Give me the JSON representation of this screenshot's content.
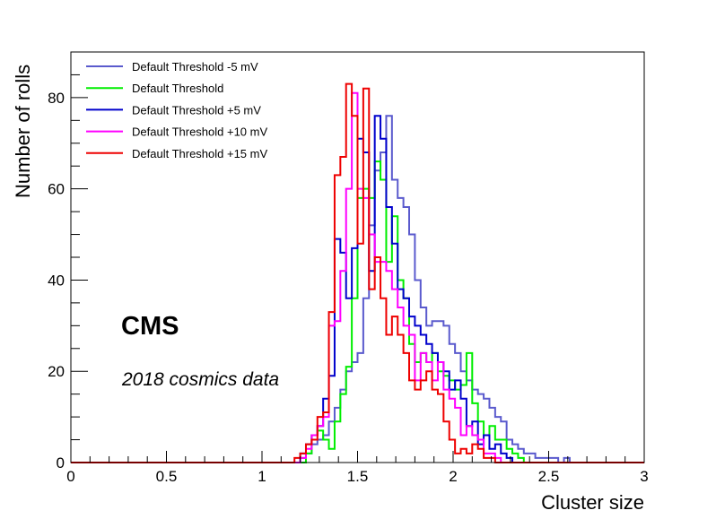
{
  "chart_data": {
    "type": "histogram",
    "xlabel": "Cluster size",
    "ylabel": "Number of rolls",
    "xlim": [
      0,
      3
    ],
    "ylim": [
      0,
      90
    ],
    "bin_width": 0.03,
    "x_ticks": [
      "0",
      "0.5",
      "1",
      "1.5",
      "2",
      "2.5",
      "3"
    ],
    "x_tick_values": [
      0,
      0.5,
      1,
      1.5,
      2,
      2.5,
      3
    ],
    "y_ticks": [
      "0",
      "20",
      "40",
      "60",
      "80"
    ],
    "y_tick_values": [
      0,
      20,
      40,
      60,
      80
    ],
    "annotations": {
      "experiment": "CMS",
      "dataset": "2018 cosmics data"
    },
    "legend_position": "top-left",
    "series": [
      {
        "name": "Default Threshold -5 mV",
        "color": "#5a5acd",
        "edges": [
          1.2,
          1.23,
          1.26,
          1.29,
          1.32,
          1.35,
          1.38,
          1.41,
          1.44,
          1.47,
          1.5,
          1.53,
          1.56,
          1.59,
          1.62,
          1.65,
          1.68,
          1.71,
          1.74,
          1.77,
          1.8,
          1.83,
          1.86,
          1.89,
          1.92,
          1.95,
          1.98,
          2.01,
          2.04,
          2.07,
          2.1,
          2.13,
          2.16,
          2.19,
          2.22,
          2.25,
          2.28,
          2.31,
          2.34,
          2.37,
          2.4,
          2.43,
          2.46,
          2.49,
          2.52,
          2.55,
          2.58,
          2.61,
          2.64
        ],
        "values": [
          1,
          2,
          4,
          5,
          6,
          9,
          12,
          16,
          20,
          22,
          24,
          36,
          52,
          64,
          68,
          76,
          62,
          58,
          56,
          50,
          40,
          34,
          30,
          31,
          31,
          30,
          26,
          24,
          20,
          18,
          16,
          15,
          14,
          12,
          10,
          9,
          5,
          4,
          3,
          2,
          2,
          1,
          1,
          1,
          1,
          0,
          1,
          0
        ]
      },
      {
        "name": "Default Threshold",
        "color": "#00ee00",
        "edges": [
          1.23,
          1.26,
          1.29,
          1.32,
          1.35,
          1.38,
          1.41,
          1.44,
          1.47,
          1.5,
          1.53,
          1.56,
          1.59,
          1.62,
          1.65,
          1.68,
          1.71,
          1.74,
          1.77,
          1.8,
          1.83,
          1.86,
          1.89,
          1.92,
          1.95,
          1.98,
          2.01,
          2.04,
          2.07,
          2.1,
          2.13,
          2.16,
          2.19,
          2.22,
          2.25,
          2.28,
          2.31,
          2.34,
          2.37
        ],
        "values": [
          2,
          6,
          7,
          5,
          3,
          9,
          15,
          21,
          36,
          58,
          60,
          58,
          66,
          62,
          44,
          54,
          40,
          36,
          26,
          22,
          24,
          22,
          24,
          20,
          19,
          18,
          16,
          17,
          24,
          13,
          9,
          6,
          8,
          5,
          5,
          3,
          2,
          1
        ]
      },
      {
        "name": "Default Threshold +5 mV",
        "color": "#0000cc",
        "edges": [
          1.2,
          1.23,
          1.26,
          1.29,
          1.32,
          1.35,
          1.38,
          1.41,
          1.44,
          1.47,
          1.5,
          1.53,
          1.56,
          1.59,
          1.62,
          1.65,
          1.68,
          1.71,
          1.74,
          1.77,
          1.8,
          1.83,
          1.86,
          1.89,
          1.92,
          1.95,
          1.98,
          2.01,
          2.04,
          2.07,
          2.1,
          2.13,
          2.16,
          2.19,
          2.22,
          2.25,
          2.28,
          2.31
        ],
        "values": [
          2,
          4,
          6,
          8,
          14,
          19,
          49,
          46,
          36,
          47,
          71,
          68,
          42,
          76,
          71,
          56,
          48,
          38,
          36,
          32,
          30,
          28,
          26,
          24,
          22,
          20,
          16,
          18,
          14,
          8,
          9,
          4,
          6,
          3,
          4,
          2,
          1
        ]
      },
      {
        "name": "Default Threshold +10 mV",
        "color": "#ff00ff",
        "edges": [
          1.2,
          1.23,
          1.26,
          1.29,
          1.32,
          1.35,
          1.38,
          1.41,
          1.44,
          1.47,
          1.5,
          1.53,
          1.56,
          1.59,
          1.62,
          1.65,
          1.68,
          1.71,
          1.74,
          1.77,
          1.8,
          1.83,
          1.86,
          1.89,
          1.92,
          1.95,
          1.98,
          2.01,
          2.04,
          2.07,
          2.1,
          2.13,
          2.16,
          2.19,
          2.22,
          2.25
        ],
        "values": [
          1,
          3,
          6,
          8,
          10,
          30,
          31,
          42,
          60,
          81,
          60,
          58,
          50,
          44,
          44,
          42,
          38,
          34,
          30,
          28,
          18,
          24,
          22,
          18,
          22,
          16,
          14,
          12,
          6,
          8,
          6,
          5,
          2,
          2,
          1
        ]
      },
      {
        "name": "Default Threshold +15 mV",
        "color": "#ee0000",
        "edges": [
          1.17,
          1.2,
          1.23,
          1.26,
          1.29,
          1.32,
          1.35,
          1.38,
          1.41,
          1.44,
          1.47,
          1.5,
          1.53,
          1.56,
          1.59,
          1.62,
          1.65,
          1.68,
          1.71,
          1.74,
          1.77,
          1.8,
          1.83,
          1.86,
          1.89,
          1.92,
          1.95,
          1.98,
          2.01,
          2.04,
          2.07,
          2.1,
          2.13,
          2.16,
          2.19,
          2.22
        ],
        "values": [
          1,
          2,
          4,
          5,
          10,
          11,
          33,
          63,
          67,
          83,
          76,
          48,
          82,
          38,
          45,
          36,
          28,
          32,
          28,
          24,
          18,
          16,
          18,
          20,
          16,
          15,
          9,
          5,
          2,
          3,
          2,
          4,
          3,
          1,
          1
        ]
      }
    ]
  }
}
